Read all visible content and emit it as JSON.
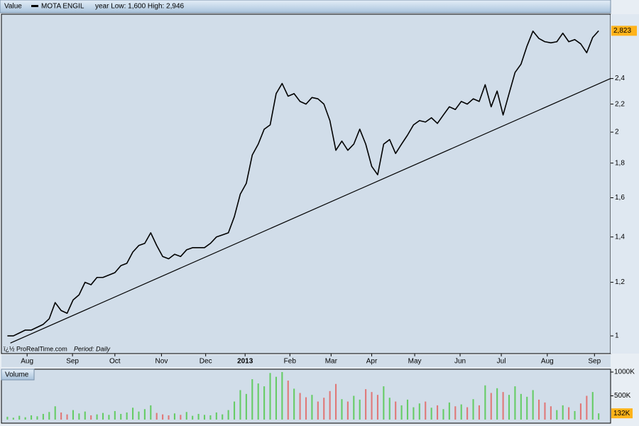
{
  "chart_data": [
    {
      "type": "line",
      "header": "Value",
      "range_note": "year Low: 1,600 High: 2,946",
      "source": "ï¿½ ProRealTime.com",
      "period": "Period: Daily",
      "log_scale": true,
      "grid": false,
      "series": [
        {
          "name": "MOTA ENGIL",
          "color": "#000000",
          "values": [
            1.0,
            1.0,
            1.01,
            1.02,
            1.02,
            1.03,
            1.04,
            1.06,
            1.12,
            1.09,
            1.08,
            1.13,
            1.15,
            1.2,
            1.19,
            1.22,
            1.22,
            1.23,
            1.24,
            1.27,
            1.28,
            1.33,
            1.36,
            1.37,
            1.42,
            1.36,
            1.31,
            1.3,
            1.32,
            1.31,
            1.34,
            1.35,
            1.35,
            1.35,
            1.37,
            1.4,
            1.41,
            1.42,
            1.5,
            1.62,
            1.68,
            1.85,
            1.92,
            2.02,
            2.05,
            2.28,
            2.36,
            2.26,
            2.28,
            2.22,
            2.2,
            2.25,
            2.24,
            2.2,
            2.08,
            1.88,
            1.94,
            1.88,
            1.92,
            2.02,
            1.92,
            1.78,
            1.73,
            1.92,
            1.95,
            1.86,
            1.92,
            1.98,
            2.05,
            2.08,
            2.07,
            2.1,
            2.06,
            2.12,
            2.18,
            2.16,
            2.22,
            2.2,
            2.24,
            2.22,
            2.35,
            2.18,
            2.3,
            2.12,
            2.28,
            2.45,
            2.52,
            2.68,
            2.82,
            2.75,
            2.72,
            2.71,
            2.72,
            2.8,
            2.72,
            2.74,
            2.7,
            2.62,
            2.76,
            2.823
          ],
          "value_labels_last": "2,823"
        }
      ],
      "trendline": {
        "color": "#000000",
        "x": [
          0.5,
          101
        ],
        "values": [
          0.976,
          2.4
        ]
      },
      "xlim": [
        -1,
        101
      ],
      "xticks": [
        {
          "value": 3.3,
          "label": "Aug"
        },
        {
          "value": 10.9,
          "label": "Sep"
        },
        {
          "value": 18,
          "label": "Oct"
        },
        {
          "value": 25.8,
          "label": "Nov"
        },
        {
          "value": 33.2,
          "label": "Dec"
        },
        {
          "value": 39.8,
          "label": "2013"
        },
        {
          "value": 47.3,
          "label": "Feb"
        },
        {
          "value": 54.2,
          "label": "Mar"
        },
        {
          "value": 61,
          "label": "Apr"
        },
        {
          "value": 68.2,
          "label": "May"
        },
        {
          "value": 75.8,
          "label": "Jun"
        },
        {
          "value": 82.7,
          "label": "Jul"
        },
        {
          "value": 90.4,
          "label": "Aug"
        },
        {
          "value": 98.3,
          "label": "Sep"
        }
      ],
      "ylim": [
        0.974,
        2.987
      ],
      "yticks": [
        1,
        {
          "value": 1.2,
          "label": "1,2"
        },
        {
          "value": 1.4,
          "label": "1,4"
        },
        {
          "value": 1.6,
          "label": "1,6"
        },
        {
          "value": 1.8,
          "label": "1,8"
        },
        2,
        {
          "value": 2.2,
          "label": "2,2"
        },
        {
          "value": 2.4,
          "label": "2,4"
        }
      ]
    },
    {
      "type": "bar",
      "title": "Volume",
      "up_color": "#66cc66",
      "down_color": "#e07878",
      "values": [
        60,
        40,
        80,
        50,
        90,
        70,
        120,
        160,
        280,
        150,
        110,
        200,
        130,
        170,
        90,
        110,
        140,
        100,
        180,
        120,
        150,
        250,
        170,
        220,
        300,
        140,
        110,
        90,
        130,
        100,
        160,
        80,
        120,
        100,
        90,
        150,
        110,
        200,
        380,
        620,
        540,
        850,
        760,
        700,
        980,
        900,
        1000,
        820,
        650,
        560,
        470,
        520,
        380,
        460,
        600,
        750,
        430,
        380,
        500,
        420,
        640,
        580,
        520,
        700,
        460,
        380,
        300,
        420,
        260,
        340,
        380,
        250,
        300,
        220,
        360,
        280,
        320,
        260,
        430,
        300,
        720,
        560,
        660,
        580,
        520,
        700,
        540,
        480,
        620,
        420,
        360,
        280,
        200,
        300,
        260,
        180,
        340,
        500,
        580,
        132
      ],
      "value_labels_last": "132K",
      "ylim": [
        0,
        1000
      ],
      "yticks": [
        {
          "value": 500,
          "label": "500K"
        },
        {
          "value": 1000,
          "label": "1000K"
        }
      ]
    }
  ]
}
